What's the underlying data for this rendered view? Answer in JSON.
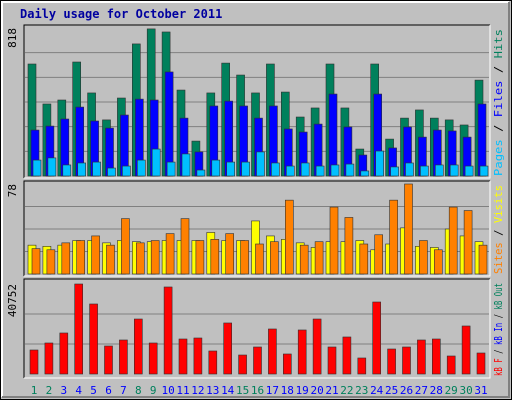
{
  "chart_data": [
    {
      "type": "bar",
      "title": "Daily usage for October 2011",
      "ylim": [
        0,
        818
      ],
      "yticks": [
        818
      ],
      "series": [
        {
          "name": "Pages",
          "color": "#00c0ff",
          "values": [
            88,
            100,
            61,
            72,
            77,
            44,
            55,
            88,
            149,
            77,
            122,
            33,
            88,
            77,
            77,
            133,
            72,
            55,
            72,
            55,
            61,
            66,
            28,
            138,
            50,
            72,
            55,
            61,
            61,
            55,
            55
          ]
        },
        {
          "name": "Files",
          "color": "#0000ff",
          "values": [
            254,
            276,
            315,
            381,
            304,
            265,
            337,
            425,
            420,
            575,
            320,
            133,
            387,
            414,
            387,
            320,
            387,
            260,
            243,
            287,
            453,
            271,
            116,
            453,
            155,
            271,
            215,
            254,
            249,
            215,
            398
          ]
        },
        {
          "name": "Hits",
          "color": "#00805c",
          "values": [
            619,
            398,
            420,
            630,
            459,
            310,
            431,
            730,
            813,
            796,
            475,
            193,
            459,
            624,
            558,
            459,
            619,
            464,
            326,
            376,
            619,
            376,
            149,
            619,
            204,
            320,
            365,
            320,
            310,
            282,
            530
          ]
        }
      ]
    },
    {
      "type": "bar",
      "ylim": [
        0,
        78
      ],
      "yticks": [
        78
      ],
      "series": [
        {
          "name": "Sites",
          "color": "#ff8000",
          "values": [
            22,
            21,
            27,
            29,
            33,
            25,
            48,
            27,
            29,
            35,
            48,
            29,
            30,
            35,
            29,
            26,
            28,
            64,
            25,
            28,
            58,
            49,
            26,
            34,
            64,
            78,
            29,
            21,
            58,
            55,
            25
          ]
        },
        {
          "name": "Visits",
          "color": "#ffff00",
          "values": [
            25,
            24,
            25,
            29,
            29,
            27,
            29,
            28,
            28,
            29,
            29,
            29,
            36,
            29,
            29,
            46,
            33,
            30,
            27,
            23,
            28,
            28,
            29,
            21,
            26,
            40,
            24,
            23,
            39,
            33,
            28
          ]
        }
      ]
    },
    {
      "type": "bar",
      "ylim": [
        0,
        40752
      ],
      "yticks": [
        40752
      ],
      "series": [
        {
          "name": "kB F",
          "color": "#ff0000",
          "values": [
            10870,
            14040,
            18570,
            40752,
            31700,
            12680,
            15400,
            24900,
            14040,
            39400,
            15850,
            16300,
            10420,
            23100,
            8600,
            12230,
            20380,
            9060,
            19930,
            24900,
            12230,
            16760,
            7250,
            32600,
            11320,
            12230,
            15400,
            15850,
            8150,
            21740,
            9510
          ]
        },
        {
          "name": "kB In",
          "color": "#0000ff"
        },
        {
          "name": "kB Out",
          "color": "#00805c"
        }
      ],
      "categories": [
        "1",
        "2",
        "3",
        "4",
        "5",
        "6",
        "7",
        "8",
        "9",
        "10",
        "11",
        "12",
        "13",
        "14",
        "15",
        "16",
        "17",
        "18",
        "19",
        "20",
        "21",
        "22",
        "23",
        "24",
        "25",
        "26",
        "27",
        "28",
        "29",
        "30",
        "31"
      ],
      "category_colors": [
        "#00805c",
        "#00805c",
        "#0000ff",
        "#0000ff",
        "#0000ff",
        "#0000ff",
        "#0000ff",
        "#00805c",
        "#00805c",
        "#0000ff",
        "#0000ff",
        "#0000ff",
        "#0000ff",
        "#0000ff",
        "#00805c",
        "#00805c",
        "#0000ff",
        "#0000ff",
        "#0000ff",
        "#0000ff",
        "#0000ff",
        "#00805c",
        "#00805c",
        "#0000ff",
        "#0000ff",
        "#0000ff",
        "#0000ff",
        "#0000ff",
        "#00805c",
        "#00805c",
        "#0000ff"
      ]
    }
  ]
}
